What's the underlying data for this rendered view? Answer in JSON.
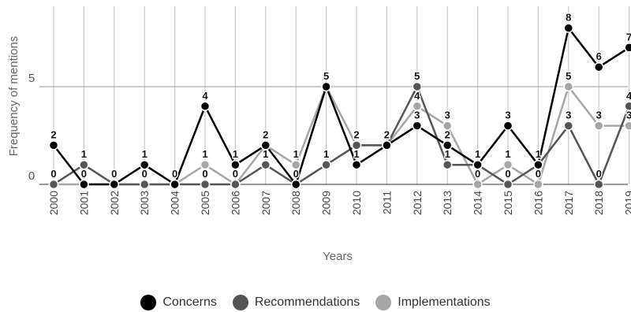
{
  "chart_data": {
    "type": "line",
    "title": "",
    "xlabel": "Years",
    "ylabel": "Frequency of mentions",
    "categories": [
      "2000",
      "2001",
      "2002",
      "2003",
      "2004",
      "2005",
      "2006",
      "2007",
      "2008",
      "2009",
      "2010",
      "2011",
      "2012",
      "2013",
      "2014",
      "2015",
      "2016",
      "2017",
      "2018",
      "2019"
    ],
    "ylim": [
      0,
      9
    ],
    "yticks": [
      0,
      5
    ],
    "grid": true,
    "legend": "bottom",
    "series": [
      {
        "name": "Concerns",
        "color": "#000000",
        "values": [
          2,
          0,
          0,
          1,
          0,
          4,
          1,
          2,
          0,
          5,
          1,
          2,
          3,
          2,
          1,
          3,
          1,
          8,
          6,
          7
        ]
      },
      {
        "name": "Recommendations",
        "color": "#555555",
        "values": [
          0,
          1,
          0,
          0,
          0,
          0,
          0,
          1,
          0,
          1,
          2,
          2,
          5,
          1,
          1,
          0,
          1,
          3,
          0,
          4
        ]
      },
      {
        "name": "Implementations",
        "color": "#a6a6a6",
        "values": [
          0,
          0,
          0,
          0,
          0,
          1,
          0,
          2,
          1,
          5,
          2,
          2,
          4,
          3,
          0,
          1,
          0,
          5,
          3,
          3
        ]
      }
    ]
  }
}
